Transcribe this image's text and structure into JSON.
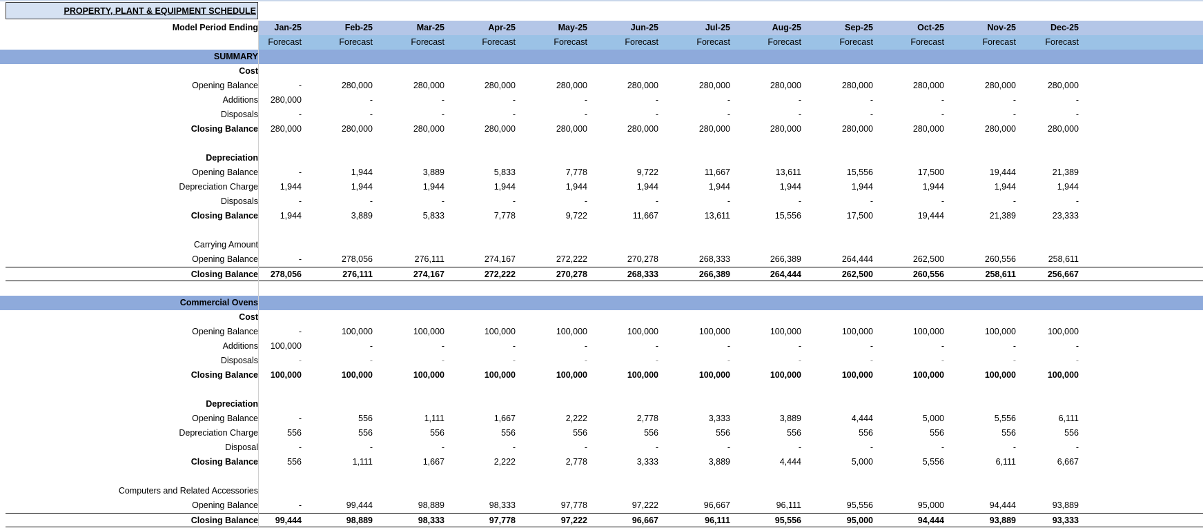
{
  "sheet": {
    "title": "PROPERTY, PLANT & EQUIPMENT  SCHEDULE"
  },
  "header": {
    "period_label": "Model Period Ending",
    "months": [
      "Jan-25",
      "Feb-25",
      "Mar-25",
      "Apr-25",
      "May-25",
      "Jun-25",
      "Jul-25",
      "Aug-25",
      "Sep-25",
      "Oct-25",
      "Nov-25",
      "Dec-25"
    ],
    "types": [
      "Forecast",
      "Forecast",
      "Forecast",
      "Forecast",
      "Forecast",
      "Forecast",
      "Forecast",
      "Forecast",
      "Forecast",
      "Forecast",
      "Forecast",
      "Forecast"
    ]
  },
  "rows": [
    {
      "label": "SUMMARY",
      "style": "sect",
      "values": []
    },
    {
      "label": "Cost",
      "style": "boldlbl",
      "values": []
    },
    {
      "label": "Opening Balance",
      "style": "",
      "values": [
        "-",
        "280,000",
        "280,000",
        "280,000",
        "280,000",
        "280,000",
        "280,000",
        "280,000",
        "280,000",
        "280,000",
        "280,000",
        "280,000"
      ]
    },
    {
      "label": "Additions",
      "style": "",
      "values": [
        "280,000",
        "-",
        "-",
        "-",
        "-",
        "-",
        "-",
        "-",
        "-",
        "-",
        "-",
        "-"
      ]
    },
    {
      "label": "Disposals",
      "style": "",
      "values": [
        "-",
        "-",
        "-",
        "-",
        "-",
        "-",
        "-",
        "-",
        "-",
        "-",
        "-",
        "-"
      ]
    },
    {
      "label": "Closing Balance",
      "style": "boldlbl",
      "values": [
        "280,000",
        "280,000",
        "280,000",
        "280,000",
        "280,000",
        "280,000",
        "280,000",
        "280,000",
        "280,000",
        "280,000",
        "280,000",
        "280,000"
      ]
    },
    {
      "label": "",
      "style": "",
      "values": []
    },
    {
      "label": "Depreciation",
      "style": "boldlbl",
      "values": []
    },
    {
      "label": "Opening Balance",
      "style": "",
      "values": [
        "-",
        "1,944",
        "3,889",
        "5,833",
        "7,778",
        "9,722",
        "11,667",
        "13,611",
        "15,556",
        "17,500",
        "19,444",
        "21,389"
      ]
    },
    {
      "label": "Depreciation Charge",
      "style": "",
      "values": [
        "1,944",
        "1,944",
        "1,944",
        "1,944",
        "1,944",
        "1,944",
        "1,944",
        "1,944",
        "1,944",
        "1,944",
        "1,944",
        "1,944"
      ]
    },
    {
      "label": "Disposals",
      "style": "",
      "values": [
        "-",
        "-",
        "-",
        "-",
        "-",
        "-",
        "-",
        "-",
        "-",
        "-",
        "-",
        "-"
      ]
    },
    {
      "label": "Closing Balance",
      "style": "boldlbl",
      "values": [
        "1,944",
        "3,889",
        "5,833",
        "7,778",
        "9,722",
        "11,667",
        "13,611",
        "15,556",
        "17,500",
        "19,444",
        "21,389",
        "23,333"
      ]
    },
    {
      "label": "",
      "style": "",
      "values": []
    },
    {
      "label": "Carrying Amount",
      "style": "",
      "values": []
    },
    {
      "label": "Opening Balance",
      "style": "",
      "values": [
        "-",
        "278,056",
        "276,111",
        "274,167",
        "272,222",
        "270,278",
        "268,333",
        "266,389",
        "264,444",
        "262,500",
        "260,556",
        "258,611"
      ]
    },
    {
      "label": "Closing Balance",
      "style": "bold ruletop rulebot",
      "values": [
        "278,056",
        "276,111",
        "274,167",
        "272,222",
        "270,278",
        "268,333",
        "266,389",
        "264,444",
        "262,500",
        "260,556",
        "258,611",
        "256,667"
      ]
    },
    {
      "label": "",
      "style": "",
      "values": []
    },
    {
      "label": "Commercial Ovens",
      "style": "sect",
      "values": []
    },
    {
      "label": "Cost",
      "style": "boldlbl",
      "values": []
    },
    {
      "label": "Opening Balance",
      "style": "",
      "values": [
        "-",
        "100,000",
        "100,000",
        "100,000",
        "100,000",
        "100,000",
        "100,000",
        "100,000",
        "100,000",
        "100,000",
        "100,000",
        "100,000"
      ]
    },
    {
      "label": "Additions",
      "style": "",
      "values": [
        "100,000",
        "-",
        "-",
        "-",
        "-",
        "-",
        "-",
        "-",
        "-",
        "-",
        "-",
        "-"
      ]
    },
    {
      "label": "Disposals",
      "style": "grey",
      "values": [
        "-",
        "-",
        "-",
        "-",
        "-",
        "-",
        "-",
        "-",
        "-",
        "-",
        "-",
        "-"
      ]
    },
    {
      "label": "Closing Balance",
      "style": "bold",
      "values": [
        "100,000",
        "100,000",
        "100,000",
        "100,000",
        "100,000",
        "100,000",
        "100,000",
        "100,000",
        "100,000",
        "100,000",
        "100,000",
        "100,000"
      ]
    },
    {
      "label": "",
      "style": "",
      "values": []
    },
    {
      "label": "Depreciation",
      "style": "boldlbl",
      "values": []
    },
    {
      "label": "Opening Balance",
      "style": "",
      "values": [
        "-",
        "556",
        "1,111",
        "1,667",
        "2,222",
        "2,778",
        "3,333",
        "3,889",
        "4,444",
        "5,000",
        "5,556",
        "6,111"
      ]
    },
    {
      "label": "Depreciation Charge",
      "style": "",
      "values": [
        "556",
        "556",
        "556",
        "556",
        "556",
        "556",
        "556",
        "556",
        "556",
        "556",
        "556",
        "556"
      ]
    },
    {
      "label": "Disposal",
      "style": "",
      "values": [
        "-",
        "-",
        "-",
        "-",
        "-",
        "-",
        "-",
        "-",
        "-",
        "-",
        "-",
        "-"
      ]
    },
    {
      "label": "Closing Balance",
      "style": "boldlbl",
      "values": [
        "556",
        "1,111",
        "1,667",
        "2,222",
        "2,778",
        "3,333",
        "3,889",
        "4,444",
        "5,000",
        "5,556",
        "6,111",
        "6,667"
      ]
    },
    {
      "label": "",
      "style": "",
      "values": []
    },
    {
      "label": "Computers and Related Accessories",
      "style": "",
      "values": []
    },
    {
      "label": "Opening Balance",
      "style": "",
      "values": [
        "-",
        "99,444",
        "98,889",
        "98,333",
        "97,778",
        "97,222",
        "96,667",
        "96,111",
        "95,556",
        "95,000",
        "94,444",
        "93,889"
      ]
    },
    {
      "label": "Closing Balance",
      "style": "bold ruletop rulebot",
      "values": [
        "99,444",
        "98,889",
        "98,333",
        "97,778",
        "97,222",
        "96,667",
        "96,111",
        "95,556",
        "95,000",
        "94,444",
        "93,889",
        "93,333"
      ]
    }
  ]
}
